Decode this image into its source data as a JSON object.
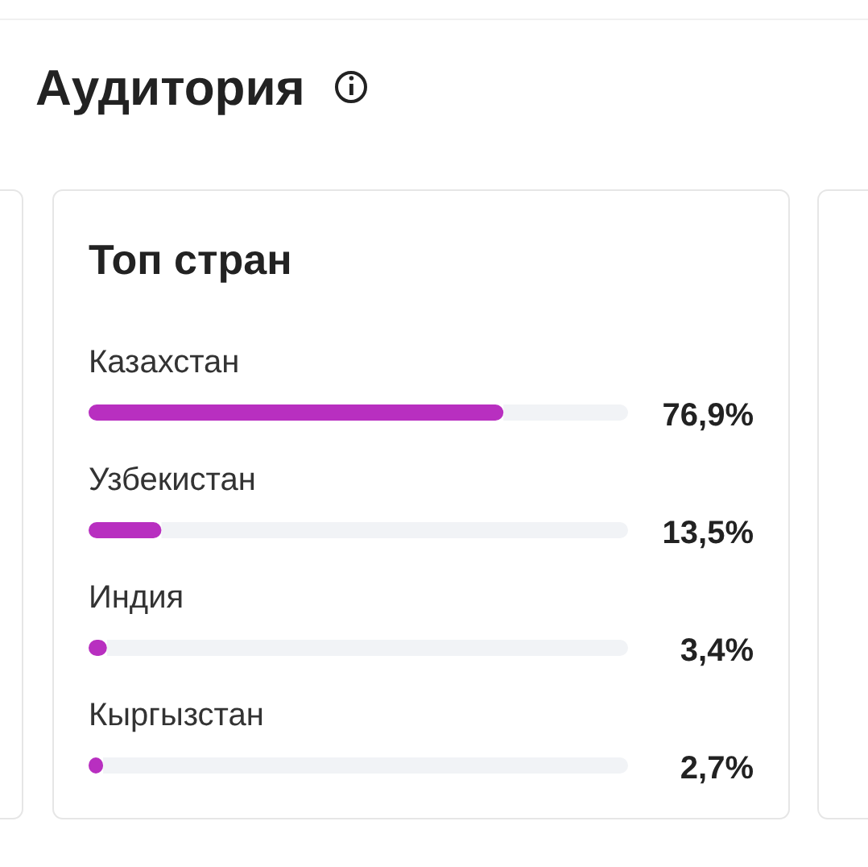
{
  "chart_data": {
    "type": "bar",
    "orientation": "horizontal",
    "title": "Аудитория",
    "subtitle": "Топ стран",
    "categories": [
      "Казахстан",
      "Узбекистан",
      "Индия",
      "Кыргызстан"
    ],
    "values": [
      76.9,
      13.5,
      3.4,
      2.7
    ],
    "value_labels": [
      "76,9%",
      "13,5%",
      "3,4%",
      "2,7%"
    ],
    "color": "#b82fc0",
    "xlim": [
      0,
      100
    ]
  }
}
